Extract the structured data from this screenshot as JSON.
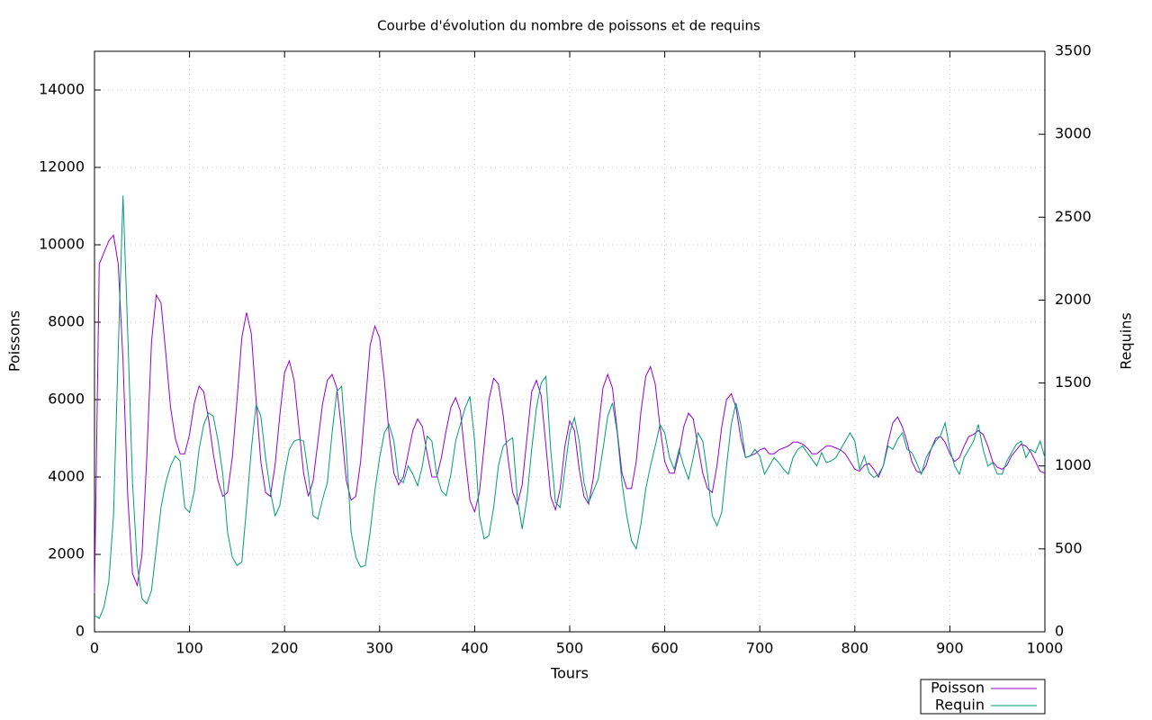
{
  "chart_data": {
    "type": "line",
    "title": "Courbe d'évolution du nombre de poissons et de requins",
    "xlabel": "Tours",
    "ylabel": "Poissons",
    "y2label": "Requins",
    "xlim": [
      0,
      1000
    ],
    "xticks": [
      0,
      100,
      200,
      300,
      400,
      500,
      600,
      700,
      800,
      900,
      1000
    ],
    "ylim": [
      0,
      15000
    ],
    "yticks": [
      0,
      2000,
      4000,
      6000,
      8000,
      10000,
      12000,
      14000
    ],
    "y2lim": [
      0,
      3500
    ],
    "y2ticks": [
      0,
      500,
      1000,
      1500,
      2000,
      2500,
      3000,
      3500
    ],
    "grid": true,
    "legend": "bottom-right",
    "x": [
      0,
      5,
      10,
      15,
      20,
      25,
      30,
      35,
      40,
      45,
      50,
      55,
      60,
      65,
      70,
      75,
      80,
      85,
      90,
      95,
      100,
      105,
      110,
      115,
      120,
      125,
      130,
      135,
      140,
      145,
      150,
      155,
      160,
      165,
      170,
      175,
      180,
      185,
      190,
      195,
      200,
      205,
      210,
      215,
      220,
      225,
      230,
      235,
      240,
      245,
      250,
      255,
      260,
      265,
      270,
      275,
      280,
      285,
      290,
      295,
      300,
      305,
      310,
      315,
      320,
      325,
      330,
      335,
      340,
      345,
      350,
      355,
      360,
      365,
      370,
      375,
      380,
      385,
      390,
      395,
      400,
      405,
      410,
      415,
      420,
      425,
      430,
      435,
      440,
      445,
      450,
      455,
      460,
      465,
      470,
      475,
      480,
      485,
      490,
      495,
      500,
      505,
      510,
      515,
      520,
      525,
      530,
      535,
      540,
      545,
      550,
      555,
      560,
      565,
      570,
      575,
      580,
      585,
      590,
      595,
      600,
      605,
      610,
      615,
      620,
      625,
      630,
      635,
      640,
      645,
      650,
      655,
      660,
      665,
      670,
      675,
      680,
      685,
      690,
      695,
      700,
      705,
      710,
      715,
      720,
      725,
      730,
      735,
      740,
      745,
      750,
      755,
      760,
      765,
      770,
      775,
      780,
      785,
      790,
      795,
      800,
      805,
      810,
      815,
      820,
      825,
      830,
      835,
      840,
      845,
      850,
      855,
      860,
      865,
      870,
      875,
      880,
      885,
      890,
      895,
      900,
      905,
      910,
      915,
      920,
      925,
      930,
      935,
      940,
      945,
      950,
      955,
      960,
      965,
      970,
      975,
      980,
      985,
      990,
      995,
      1000
    ],
    "series": [
      {
        "name": "Poisson",
        "color": "#9400d3",
        "axis": "y",
        "values": [
          1000,
          9500,
          9800,
          10100,
          10250,
          9500,
          7000,
          3500,
          1500,
          1200,
          2000,
          4500,
          7500,
          8700,
          8500,
          7200,
          5800,
          5000,
          4600,
          4600,
          5100,
          5900,
          6350,
          6200,
          5500,
          4600,
          3900,
          3500,
          3600,
          4500,
          6000,
          7600,
          8250,
          7700,
          6000,
          4400,
          3600,
          3500,
          4300,
          5600,
          6700,
          7000,
          6500,
          5300,
          4100,
          3500,
          3900,
          4900,
          5900,
          6500,
          6650,
          6300,
          5200,
          3900,
          3400,
          3500,
          4400,
          5900,
          7400,
          7900,
          7600,
          6500,
          5100,
          4100,
          3800,
          4000,
          4600,
          5200,
          5500,
          5300,
          4600,
          4000,
          4000,
          4500,
          5200,
          5800,
          6050,
          5700,
          4500,
          3400,
          3100,
          3600,
          4800,
          6000,
          6550,
          6400,
          5600,
          4500,
          3600,
          3300,
          3800,
          5000,
          6200,
          6500,
          6100,
          4800,
          3500,
          3150,
          3700,
          4800,
          5450,
          5200,
          4200,
          3500,
          3300,
          4000,
          5200,
          6300,
          6650,
          6300,
          5200,
          4100,
          3700,
          3700,
          4400,
          5700,
          6600,
          6850,
          6400,
          5300,
          4400,
          4100,
          4100,
          4600,
          5300,
          5650,
          5500,
          4800,
          4100,
          3700,
          3600,
          4300,
          5300,
          6000,
          6150,
          5800,
          5000,
          4500,
          4550,
          4600,
          4700,
          4750,
          4600,
          4600,
          4700,
          4750,
          4800,
          4900,
          4900,
          4850,
          4750,
          4600,
          4600,
          4700,
          4800,
          4800,
          4750,
          4700,
          4600,
          4400,
          4200,
          4150,
          4300,
          4350,
          4200,
          4000,
          4300,
          4900,
          5400,
          5550,
          5300,
          4900,
          4400,
          4150,
          4100,
          4300,
          4700,
          5000,
          5050,
          4900,
          4600,
          4400,
          4500,
          4800,
          5050,
          5100,
          5200,
          5100,
          4800,
          4400,
          4250,
          4200,
          4300,
          4550,
          4700,
          4850,
          4800,
          4650,
          4400,
          4150,
          4100
        ]
      },
      {
        "name": "Requin",
        "color": "#009e73",
        "axis": "y2",
        "values": [
          100,
          80,
          150,
          300,
          700,
          1700,
          2630,
          1800,
          900,
          400,
          200,
          170,
          250,
          500,
          750,
          900,
          1000,
          1060,
          1030,
          750,
          720,
          850,
          1100,
          1250,
          1320,
          1300,
          1150,
          950,
          600,
          450,
          400,
          420,
          750,
          1100,
          1370,
          1300,
          1050,
          850,
          700,
          760,
          950,
          1100,
          1150,
          1160,
          1150,
          950,
          700,
          680,
          800,
          900,
          1200,
          1450,
          1480,
          1100,
          600,
          450,
          390,
          400,
          600,
          850,
          1050,
          1200,
          1250,
          1150,
          920,
          900,
          1000,
          950,
          880,
          1000,
          1180,
          1150,
          950,
          850,
          820,
          950,
          1150,
          1250,
          1350,
          1420,
          1150,
          700,
          560,
          580,
          750,
          1000,
          1120,
          1150,
          1170,
          800,
          620,
          800,
          1100,
          1350,
          1500,
          1540,
          1100,
          780,
          750,
          980,
          1200,
          1290,
          1150,
          900,
          780,
          850,
          920,
          1100,
          1300,
          1380,
          1200,
          900,
          700,
          550,
          500,
          650,
          860,
          1000,
          1120,
          1250,
          1200,
          1050,
          980,
          1100,
          1000,
          920,
          1050,
          1200,
          1150,
          950,
          700,
          640,
          720,
          1000,
          1250,
          1380,
          1250,
          1050,
          1060,
          1100,
          1060,
          950,
          1000,
          1050,
          1020,
          980,
          950,
          1050,
          1100,
          1120,
          1080,
          1040,
          1000,
          1080,
          1020,
          1030,
          1050,
          1100,
          1150,
          1200,
          1150,
          980,
          1060,
          960,
          930,
          950,
          1000,
          1120,
          1100,
          1160,
          1200,
          1100,
          1080,
          1020,
          950,
          1050,
          1100,
          1150,
          1180,
          1260,
          1100,
          1000,
          950,
          1050,
          1100,
          1150,
          1250,
          1100,
          1000,
          1020,
          950,
          950,
          1030,
          1080,
          1130,
          1150,
          1050,
          1100,
          1080,
          1150,
          1050
        ]
      }
    ]
  }
}
